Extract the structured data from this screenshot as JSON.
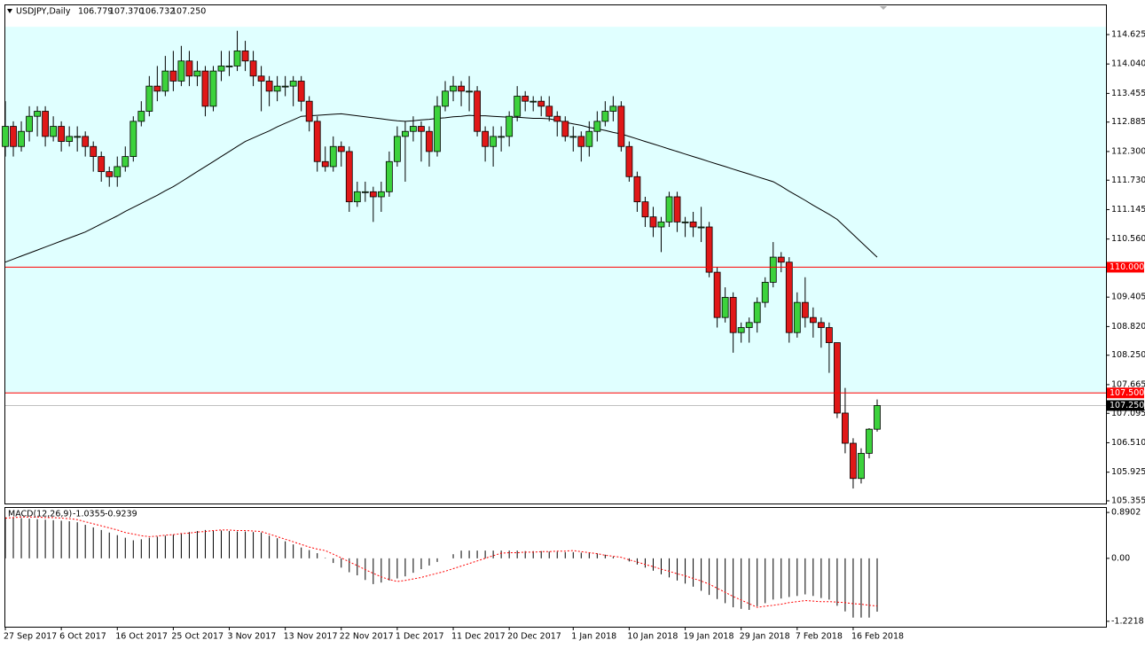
{
  "chart_data": [
    {
      "type": "candlestick",
      "title": "USDJPY,Daily",
      "title_values": [
        "106.779",
        "107.370",
        "106.732",
        "107.250"
      ],
      "categories": [
        "27 Sep 2017",
        null,
        null,
        null,
        null,
        null,
        null,
        "6 Oct 2017",
        null,
        null,
        null,
        null,
        null,
        null,
        "16 Oct 2017",
        null,
        null,
        null,
        null,
        null,
        null,
        "25 Oct 2017",
        null,
        null,
        null,
        null,
        null,
        null,
        "3 Nov 2017",
        null,
        null,
        null,
        null,
        null,
        null,
        "13 Nov 2017",
        null,
        null,
        null,
        null,
        null,
        null,
        "22 Nov 2017",
        null,
        null,
        null,
        null,
        null,
        null,
        "1 Dec 2017",
        null,
        null,
        null,
        null,
        null,
        null,
        "11 Dec 2017",
        null,
        null,
        null,
        null,
        null,
        null,
        "20 Dec 2017",
        null,
        null,
        null,
        null,
        null,
        null,
        null,
        "1 Jan 2018",
        null,
        null,
        null,
        null,
        null,
        null,
        "10 Jan 2018",
        null,
        null,
        null,
        null,
        null,
        null,
        "19 Jan 2018",
        null,
        null,
        null,
        null,
        null,
        null,
        "29 Jan 2018",
        null,
        null,
        null,
        null,
        null,
        null,
        "7 Feb 2018",
        null,
        null,
        null,
        null,
        null,
        null,
        "16 Feb 2018",
        null,
        null,
        null
      ],
      "open": [
        112.4,
        112.8,
        112.4,
        112.7,
        113.0,
        113.1,
        112.6,
        112.8,
        112.5,
        112.6,
        112.6,
        112.4,
        112.2,
        111.9,
        111.8,
        112.0,
        112.2,
        112.9,
        113.1,
        113.6,
        113.5,
        113.9,
        113.7,
        114.1,
        113.8,
        113.9,
        113.2,
        113.9,
        114.0,
        114.0,
        114.3,
        114.1,
        113.8,
        113.7,
        113.5,
        113.6,
        113.6,
        113.7,
        113.3,
        112.9,
        112.1,
        112.0,
        112.4,
        112.3,
        111.3,
        111.5,
        111.5,
        111.4,
        111.5,
        112.1,
        112.6,
        112.7,
        112.8,
        112.7,
        112.3,
        113.2,
        113.5,
        113.6,
        113.5,
        113.5,
        112.7,
        112.4,
        112.6,
        112.6,
        113.0,
        113.4,
        113.3,
        113.3,
        113.2,
        113.0,
        112.9,
        112.6,
        112.6,
        112.4,
        112.7,
        112.9,
        113.1,
        113.2,
        112.4,
        111.8,
        111.3,
        111.0,
        110.8,
        110.9,
        111.4,
        110.9,
        110.9,
        110.8,
        110.8,
        109.9,
        109.0,
        109.4,
        108.7,
        108.8,
        108.9,
        109.3,
        109.7,
        110.2,
        110.1,
        108.7,
        109.3,
        109.0,
        108.9,
        108.8,
        108.5,
        107.1,
        106.5,
        105.8,
        106.3,
        106.779
      ],
      "high": [
        113.3,
        112.9,
        112.9,
        113.2,
        113.2,
        113.2,
        113.0,
        112.9,
        112.8,
        112.8,
        112.7,
        112.5,
        112.3,
        112.0,
        112.2,
        112.4,
        113.0,
        113.3,
        113.8,
        114.0,
        114.2,
        114.3,
        114.4,
        114.3,
        114.1,
        114.0,
        114.0,
        114.3,
        114.3,
        114.7,
        114.5,
        114.3,
        114.0,
        113.8,
        113.8,
        113.8,
        113.8,
        113.8,
        113.4,
        113.0,
        112.4,
        112.6,
        112.5,
        112.4,
        111.7,
        111.7,
        111.6,
        111.7,
        112.3,
        112.8,
        112.9,
        113.0,
        112.9,
        112.8,
        113.4,
        113.7,
        113.8,
        113.7,
        113.8,
        113.6,
        112.8,
        112.8,
        112.8,
        113.1,
        113.6,
        113.5,
        113.4,
        113.4,
        113.4,
        113.1,
        113.0,
        112.8,
        112.7,
        112.9,
        113.1,
        113.3,
        113.4,
        113.3,
        112.5,
        111.9,
        111.4,
        111.2,
        111.0,
        111.5,
        111.5,
        111.0,
        111.1,
        111.2,
        110.9,
        110.0,
        109.6,
        109.5,
        108.9,
        109.0,
        109.4,
        109.8,
        110.5,
        110.3,
        110.2,
        109.5,
        109.8,
        109.2,
        109.0,
        108.9,
        108.5,
        107.6,
        106.6,
        106.4,
        106.8,
        107.37
      ],
      "low": [
        112.2,
        112.2,
        112.3,
        112.5,
        112.6,
        112.4,
        112.5,
        112.3,
        112.4,
        112.3,
        112.2,
        111.9,
        111.7,
        111.6,
        111.6,
        111.9,
        112.1,
        112.8,
        113.0,
        113.3,
        113.4,
        113.5,
        113.6,
        113.6,
        113.6,
        113.0,
        113.1,
        113.7,
        113.8,
        113.9,
        113.9,
        113.6,
        113.1,
        113.2,
        113.3,
        113.4,
        113.2,
        113.1,
        112.7,
        111.9,
        111.9,
        111.9,
        112.0,
        111.1,
        111.2,
        111.3,
        110.9,
        111.1,
        111.4,
        112.0,
        111.7,
        112.5,
        112.1,
        112.0,
        112.2,
        113.1,
        113.3,
        113.2,
        113.1,
        112.6,
        112.1,
        112.0,
        112.3,
        112.4,
        112.9,
        113.1,
        113.1,
        113.0,
        112.9,
        112.6,
        112.5,
        112.3,
        112.1,
        112.2,
        112.5,
        112.8,
        112.9,
        112.3,
        111.7,
        111.1,
        110.8,
        110.6,
        110.3,
        110.8,
        110.7,
        110.6,
        110.6,
        110.5,
        109.8,
        108.8,
        108.9,
        108.3,
        108.5,
        108.5,
        108.7,
        109.2,
        109.6,
        109.9,
        108.5,
        108.6,
        108.8,
        108.6,
        108.4,
        107.9,
        107.0,
        106.3,
        105.6,
        105.7,
        106.2,
        106.732
      ],
      "close": [
        112.8,
        112.4,
        112.7,
        113.0,
        113.1,
        112.6,
        112.8,
        112.5,
        112.6,
        112.6,
        112.4,
        112.2,
        111.9,
        111.8,
        112.0,
        112.2,
        112.9,
        113.1,
        113.6,
        113.5,
        113.9,
        113.7,
        114.1,
        113.8,
        113.9,
        113.2,
        113.9,
        114.0,
        114.0,
        114.3,
        114.1,
        113.8,
        113.7,
        113.5,
        113.6,
        113.6,
        113.7,
        113.3,
        112.9,
        112.1,
        112.0,
        112.4,
        112.3,
        111.3,
        111.5,
        111.5,
        111.4,
        111.5,
        112.1,
        112.6,
        112.7,
        112.8,
        112.7,
        112.3,
        113.2,
        113.5,
        113.6,
        113.5,
        113.5,
        112.7,
        112.4,
        112.6,
        112.6,
        113.0,
        113.4,
        113.3,
        113.3,
        113.2,
        113.0,
        112.9,
        112.6,
        112.6,
        112.4,
        112.7,
        112.9,
        113.1,
        113.2,
        112.4,
        111.8,
        111.3,
        111.0,
        110.8,
        110.9,
        111.4,
        110.9,
        110.9,
        110.8,
        110.8,
        109.9,
        109.0,
        109.4,
        108.7,
        108.8,
        108.9,
        109.3,
        109.7,
        110.2,
        110.1,
        108.7,
        109.3,
        109.0,
        108.9,
        108.8,
        108.5,
        107.1,
        106.5,
        105.8,
        106.3,
        106.78,
        107.25
      ],
      "up_color": "#3cd23c",
      "down_color": "#e01818",
      "ma": {
        "color": "#000000",
        "values": [
          110.1,
          110.16,
          110.22,
          110.28,
          110.34,
          110.4,
          110.46,
          110.52,
          110.58,
          110.64,
          110.7,
          110.78,
          110.86,
          110.94,
          111.02,
          111.11,
          111.19,
          111.27,
          111.35,
          111.43,
          111.52,
          111.6,
          111.7,
          111.8,
          111.9,
          112.0,
          112.1,
          112.2,
          112.3,
          112.4,
          112.5,
          112.57,
          112.64,
          112.71,
          112.79,
          112.86,
          112.93,
          113.0,
          113.01,
          113.02,
          113.03,
          113.04,
          113.05,
          113.03,
          113.01,
          112.99,
          112.97,
          112.95,
          112.93,
          112.91,
          112.9,
          112.91,
          112.93,
          112.94,
          112.96,
          112.97,
          112.99,
          113.0,
          113.02,
          113.01,
          113.01,
          113.0,
          112.99,
          112.98,
          112.98,
          112.97,
          112.96,
          112.96,
          112.95,
          112.92,
          112.88,
          112.85,
          112.82,
          112.78,
          112.75,
          112.72,
          112.68,
          112.65,
          112.6,
          112.55,
          112.5,
          112.45,
          112.4,
          112.35,
          112.3,
          112.25,
          112.2,
          112.15,
          112.1,
          112.05,
          112.0,
          111.95,
          111.9,
          111.85,
          111.8,
          111.75,
          111.7,
          111.61,
          111.51,
          111.42,
          111.33,
          111.23,
          111.14,
          111.05,
          110.95,
          110.8,
          110.65,
          110.5,
          110.35,
          110.2
        ]
      },
      "zone": {
        "from": 107.5,
        "to": 114.78,
        "color": "#e0ffff"
      },
      "hlines": [
        {
          "value": 110,
          "label": "110.000",
          "color": "#ff0000"
        },
        {
          "value": 107.5,
          "label": "107.500",
          "color": "#ff0000"
        }
      ],
      "current_price": {
        "value": 107.25,
        "label": "107.250",
        "color": "#c0c0c0"
      },
      "ylim": [
        105.302,
        115.224
      ],
      "yticks": [
        114.625,
        {
          "value": 114.04,
          "label": "114.040"
        },
        113.455,
        112.885,
        {
          "value": 112.3,
          "label": "112.300"
        },
        {
          "value": 111.73,
          "label": "111.730"
        },
        111.145,
        {
          "value": 110.56,
          "label": "110.560"
        },
        109.405,
        {
          "value": 108.82,
          "label": "108.820"
        },
        {
          "value": 108.25,
          "label": "108.250"
        },
        107.665,
        107.095,
        {
          "value": 106.51,
          "label": "106.510"
        },
        105.925,
        105.355
      ]
    },
    {
      "type": "macd",
      "title": "MACD(12,26,9)",
      "title_values": [
        -1.0355,
        -0.9239
      ],
      "histogram": {
        "color": "#000000",
        "values": [
          0.8,
          0.79,
          0.78,
          0.77,
          0.76,
          0.75,
          0.74,
          0.73,
          0.72,
          0.7,
          0.65,
          0.6,
          0.55,
          0.5,
          0.45,
          0.4,
          0.35,
          0.37,
          0.4,
          0.42,
          0.44,
          0.46,
          0.48,
          0.51,
          0.53,
          0.55,
          0.54,
          0.54,
          0.53,
          0.52,
          0.52,
          0.51,
          0.5,
          0.44,
          0.39,
          0.33,
          0.27,
          0.21,
          0.16,
          0.1,
          0.01,
          -0.09,
          -0.18,
          -0.27,
          -0.33,
          -0.42,
          -0.5,
          -0.47,
          -0.43,
          -0.39,
          -0.35,
          -0.28,
          -0.21,
          -0.14,
          -0.07,
          0.0,
          0.08,
          0.15,
          0.15,
          0.15,
          0.15,
          0.15,
          0.15,
          0.15,
          0.15,
          0.14,
          0.14,
          0.14,
          0.13,
          0.13,
          0.12,
          0.12,
          0.11,
          0.11,
          0.1,
          0.07,
          0.03,
          0.0,
          -0.06,
          -0.12,
          -0.18,
          -0.24,
          -0.31,
          -0.37,
          -0.43,
          -0.49,
          -0.55,
          -0.63,
          -0.71,
          -0.79,
          -0.87,
          -0.95,
          -0.98,
          -1.0,
          -0.93,
          -0.87,
          -0.8,
          -0.78,
          -0.75,
          -0.73,
          -0.7,
          -0.73,
          -0.77,
          -0.8,
          -0.92,
          -1.03,
          -1.15,
          -1.15,
          -1.15,
          -1.0355
        ]
      },
      "signal": {
        "color": "#ff0000",
        "values": [
          0.78,
          0.79,
          0.8,
          0.8,
          0.8,
          0.79,
          0.79,
          0.78,
          0.77,
          0.75,
          0.71,
          0.67,
          0.63,
          0.59,
          0.55,
          0.5,
          0.47,
          0.44,
          0.42,
          0.43,
          0.45,
          0.46,
          0.48,
          0.49,
          0.51,
          0.52,
          0.54,
          0.55,
          0.55,
          0.54,
          0.54,
          0.53,
          0.52,
          0.47,
          0.42,
          0.37,
          0.32,
          0.27,
          0.22,
          0.18,
          0.15,
          0.08,
          0.01,
          -0.07,
          -0.14,
          -0.22,
          -0.29,
          -0.36,
          -0.41,
          -0.45,
          -0.43,
          -0.4,
          -0.37,
          -0.33,
          -0.29,
          -0.25,
          -0.2,
          -0.15,
          -0.1,
          -0.05,
          0.0,
          0.05,
          0.1,
          0.11,
          0.11,
          0.12,
          0.12,
          0.13,
          0.13,
          0.14,
          0.14,
          0.15,
          0.13,
          0.11,
          0.09,
          0.06,
          0.04,
          0.02,
          -0.03,
          -0.07,
          -0.12,
          -0.16,
          -0.21,
          -0.25,
          -0.3,
          -0.34,
          -0.39,
          -0.44,
          -0.5,
          -0.58,
          -0.66,
          -0.74,
          -0.81,
          -0.88,
          -0.95,
          -0.93,
          -0.91,
          -0.89,
          -0.86,
          -0.84,
          -0.82,
          -0.83,
          -0.84,
          -0.84,
          -0.85,
          -0.86,
          -0.88,
          -0.89,
          -0.91,
          -0.9239
        ]
      },
      "ylim": [
        -1.327,
        0.995
      ],
      "yticks": [
        0.8902,
        {
          "value": 0,
          "label": "0.00"
        },
        -1.2218
      ]
    }
  ]
}
